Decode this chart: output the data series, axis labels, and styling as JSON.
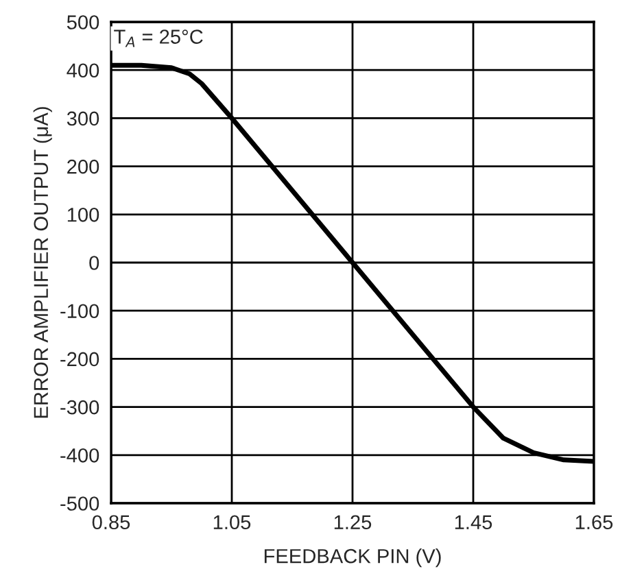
{
  "chart_data": {
    "type": "line",
    "xlabel": "FEEDBACK PIN (V)",
    "ylabel": "ERROR AMPLIFIER OUTPUT (μA)",
    "annotations": [
      "T$_{A}$ = 25°C"
    ],
    "x": [
      0.85,
      0.9,
      0.95,
      0.98,
      1.0,
      1.05,
      1.25,
      1.45,
      1.5,
      1.55,
      1.6,
      1.65
    ],
    "series": [
      {
        "color": "#000000",
        "values": [
          410,
          410,
          405,
          392,
          372,
          300,
          0,
          -300,
          -365,
          -395,
          -410,
          -413
        ]
      }
    ],
    "xlim": [
      0.85,
      1.65
    ],
    "xticks": [
      0.85,
      1.05,
      1.25,
      1.45,
      1.65
    ],
    "ylim": [
      -500,
      500
    ],
    "yticks": [
      -500,
      -400,
      -300,
      -200,
      -100,
      0,
      100,
      200,
      300,
      400,
      500
    ],
    "grid": true,
    "line_style": "solid",
    "marker": "none"
  }
}
